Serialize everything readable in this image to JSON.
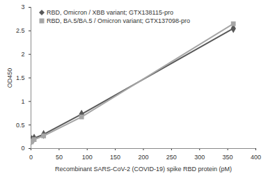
{
  "chart_data": {
    "type": "line",
    "x_label": "Recombinant SARS-CoV-2 (COVID-19) spike RBD protein (pM)",
    "y_label": "OD450",
    "x": [
      0.35,
      1.4,
      5.6,
      22.5,
      90,
      360
    ],
    "series": [
      {
        "name": "RBD, Omicron / XBB variant; GTX138115-pro",
        "color": "#595959",
        "marker": "diamond",
        "values": [
          0.17,
          0.19,
          0.22,
          0.3,
          0.73,
          2.55
        ]
      },
      {
        "name": "RBD, BA.5/BA.5 / Omicron variant; GTX137098-pro",
        "color": "#a6a6a6",
        "marker": "square",
        "values": [
          0.14,
          0.16,
          0.19,
          0.27,
          0.67,
          2.65
        ]
      }
    ],
    "xlim": [
      0,
      400
    ],
    "xticks": [
      0,
      50,
      100,
      150,
      200,
      250,
      300,
      350,
      400
    ],
    "ylim": [
      0,
      3
    ],
    "yticks": [
      0,
      0.5,
      1,
      1.5,
      2,
      2.5,
      3
    ],
    "grid": false,
    "legend": "top-left"
  }
}
